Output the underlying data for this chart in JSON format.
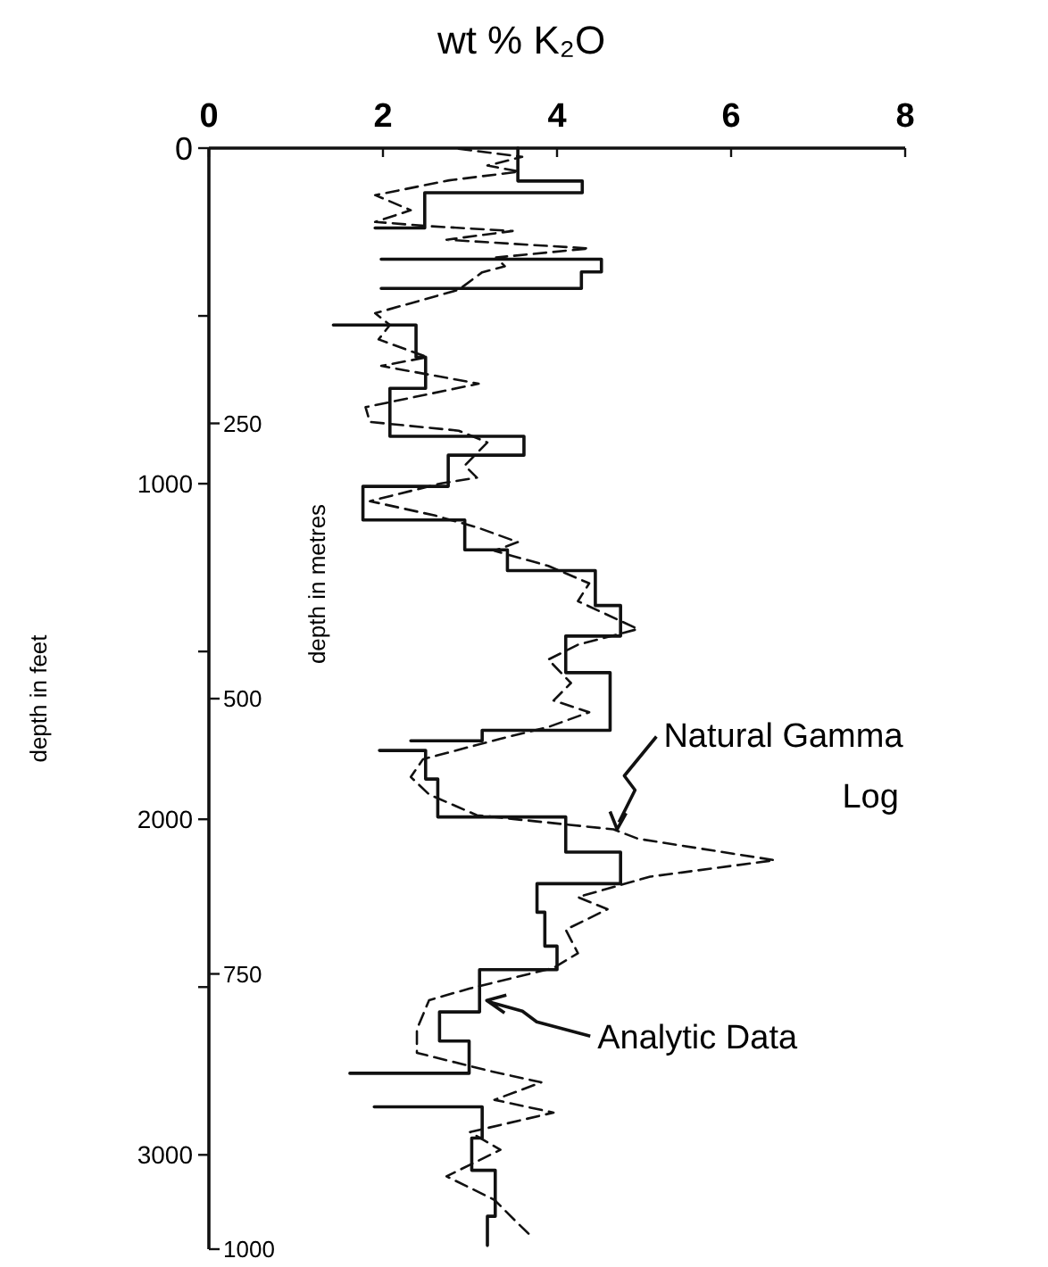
{
  "chart_data": {
    "type": "line",
    "xlabel": "wt % K₂O",
    "ylabel": "depth in feet",
    "y2label": "depth in metres",
    "xlim": [
      0,
      8
    ],
    "xticks": [
      0,
      2,
      4,
      6,
      8
    ],
    "ylim": [
      3281,
      0
    ],
    "yticks": [
      0,
      {
        "value": 500,
        "label": null
      },
      1000,
      {
        "value": 1500,
        "label": null
      },
      2000,
      {
        "value": 2500,
        "label": null
      },
      3000
    ],
    "y2lim": [
      1000,
      0
    ],
    "y2ticks": [
      250,
      500,
      750,
      1000
    ],
    "grid": false,
    "marker": "none",
    "series": [
      {
        "color": "#111111",
        "line_style": "solid",
        "x": [
          3.55,
          3.55,
          4.29,
          4.29,
          2.48,
          2.48,
          1.91,
          null,
          1.98,
          4.51,
          4.51,
          4.28,
          4.28,
          1.98,
          null,
          1.43,
          2.38,
          2.38,
          2.49,
          2.49,
          2.08,
          2.08,
          3.62,
          3.62,
          2.75,
          2.75,
          1.77,
          1.77,
          2.94,
          2.94,
          3.43,
          3.43,
          4.44,
          4.44,
          4.73,
          4.73,
          4.1,
          4.1,
          4.61,
          4.61,
          3.14,
          3.14,
          2.32,
          null,
          1.96,
          2.49,
          2.49,
          2.63,
          2.63,
          4.1,
          4.1,
          4.73,
          4.73,
          3.77,
          3.77,
          3.86,
          3.86,
          4.0,
          4.0,
          3.11,
          3.11,
          2.65,
          2.65,
          2.99,
          2.99,
          1.62,
          null,
          1.9,
          3.14,
          3.14,
          3.02,
          3.02,
          3.29,
          3.29,
          3.2,
          3.2
        ],
        "values": [
          0,
          98,
          98,
          133,
          133,
          238,
          238,
          null,
          331,
          331,
          369,
          369,
          418,
          418,
          null,
          527,
          527,
          623,
          623,
          716,
          716,
          859,
          859,
          915,
          915,
          1008,
          1008,
          1108,
          1108,
          1197,
          1197,
          1259,
          1259,
          1363,
          1363,
          1454,
          1454,
          1563,
          1563,
          1735,
          1735,
          1766,
          1766,
          null,
          1795,
          1795,
          1880,
          1880,
          1993,
          1993,
          2098,
          2098,
          2192,
          2192,
          2277,
          2277,
          2378,
          2378,
          2448,
          2448,
          2574,
          2574,
          2661,
          2661,
          2757,
          2757,
          null,
          2857,
          2857,
          2950,
          2950,
          3046,
          3046,
          3183,
          3183,
          3270
        ]
      },
      {
        "color": "#111111",
        "line_style": "dashed",
        "x": [
          2.87,
          3.6,
          3.2,
          3.57,
          2.76,
          1.91,
          2.32,
          1.91,
          2.5,
          3.49,
          2.73,
          4.37,
          3.3,
          3.4,
          3.14,
          2.87,
          1.91,
          2.08,
          1.95,
          2.51,
          1.98,
          3.1,
          1.8,
          1.85,
          2.87,
          3.2,
          2.94,
          3.08,
          2.67,
          1.85,
          2.6,
          3.08,
          3.55,
          3.28,
          3.9,
          4.37,
          4.24,
          4.93,
          4.24,
          3.9,
          4.16,
          3.96,
          4.37,
          3.9,
          3.35,
          2.46,
          2.32,
          2.53,
          3.08,
          4.65,
          4.93,
          6.5,
          5.07,
          4.24,
          4.58,
          4.1,
          4.24,
          3.96,
          3.0,
          2.53,
          2.39,
          2.39,
          3.21,
          3.82,
          3.28,
          3.96,
          3.0,
          3.35,
          2.73,
          3.28,
          3.55,
          3.69
        ],
        "values": [
          2,
          26,
          52,
          70,
          96,
          140,
          185,
          220,
          232,
          247,
          273,
          299,
          326,
          352,
          370,
          422,
          492,
          527,
          570,
          623,
          649,
          702,
          772,
          816,
          842,
          877,
          946,
          982,
          999,
          1052,
          1095,
          1130,
          1174,
          1200,
          1245,
          1297,
          1350,
          1433,
          1480,
          1524,
          1594,
          1646,
          1681,
          1725,
          1760,
          1821,
          1874,
          1926,
          1988,
          2030,
          2058,
          2122,
          2171,
          2232,
          2268,
          2329,
          2399,
          2443,
          2504,
          2539,
          2626,
          2696,
          2749,
          2784,
          2836,
          2874,
          2932,
          2985,
          3064,
          3134,
          3204,
          3239
        ]
      }
    ],
    "annotations": [
      {
        "text": "Natural Gamma Log",
        "x": 4.65,
        "y": 2030
      },
      {
        "text": "Analytic Data",
        "x": 3.11,
        "y": 2540
      }
    ]
  }
}
